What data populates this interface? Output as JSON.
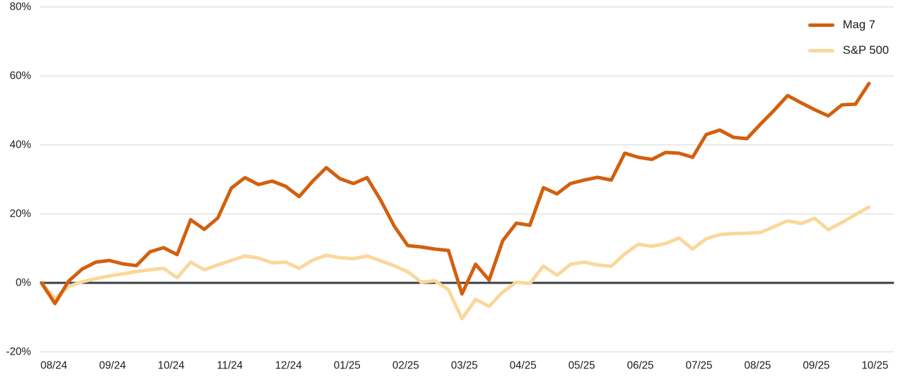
{
  "chart_data": {
    "type": "line",
    "title": "",
    "xlabel": "",
    "ylabel": "",
    "ylim": [
      -20,
      80
    ],
    "y_ticks": [
      80,
      60,
      40,
      20,
      0,
      -20
    ],
    "y_tick_suffix": "%",
    "x_tick_labels": [
      "08/24",
      "09/24",
      "10/24",
      "11/24",
      "12/24",
      "01/25",
      "02/25",
      "03/25",
      "04/25",
      "05/25",
      "06/25",
      "07/25",
      "08/25",
      "09/25",
      "10/25"
    ],
    "grid": "horizontal-light-gray",
    "zero_line": true,
    "legend_position": "top-right",
    "x_frequency": "weekly",
    "series": [
      {
        "name": "Mag 7",
        "color": "#D2600E",
        "values": [
          0,
          -6,
          0.5,
          4,
          6,
          6.5,
          5.5,
          5,
          9,
          10.2,
          8.2,
          18.3,
          15.5,
          18.8,
          27.5,
          30.5,
          28.5,
          29.5,
          28,
          25,
          29.5,
          33.4,
          30.2,
          28.8,
          30.5,
          24,
          16.5,
          10.8,
          10.4,
          9.8,
          9.4,
          -3.2,
          5.4,
          0.8,
          12.2,
          17.3,
          16.7,
          27.6,
          25.8,
          28.8,
          29.8,
          30.6,
          29.8,
          37.6,
          36.4,
          35.8,
          37.8,
          37.6,
          36.4,
          43,
          44.3,
          42.2,
          41.8,
          46,
          50,
          54.3,
          52.2,
          50.2,
          48.4,
          51.6,
          51.8,
          57.8
        ]
      },
      {
        "name": "S&P 500",
        "color": "#FAD79B",
        "values": [
          0,
          -4.5,
          -1,
          0.3,
          1.2,
          2,
          2.6,
          3.3,
          3.8,
          4.2,
          1.5,
          6,
          3.8,
          5.2,
          6.5,
          7.8,
          7.2,
          5.8,
          6,
          4.2,
          6.6,
          8,
          7.3,
          7,
          7.8,
          6.4,
          5,
          3.2,
          0.2,
          0.6,
          -2,
          -10.4,
          -4.8,
          -6.8,
          -2.7,
          0.2,
          -0.2,
          4.9,
          2.2,
          5.4,
          6,
          5.2,
          4.8,
          8.4,
          11.2,
          10.6,
          11.4,
          13,
          9.8,
          12.8,
          14,
          14.3,
          14.4,
          14.6,
          16.3,
          18,
          17.2,
          18.7,
          15.4,
          17.5,
          19.8,
          22
        ]
      }
    ],
    "colors": {
      "background": "#ffffff",
      "gridline": "#E2E2E2",
      "zero_line": "#383E40",
      "text": "#1B1B1B"
    }
  },
  "legend": {
    "items": [
      {
        "label": "Mag 7"
      },
      {
        "label": "S&P 500"
      }
    ]
  }
}
